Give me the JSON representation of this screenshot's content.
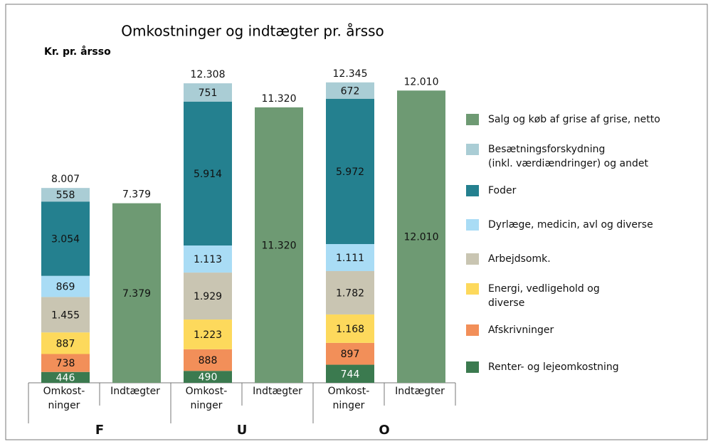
{
  "chart_data": {
    "type": "stacked_bar",
    "title": "Omkostninger og indtægter pr. årsso",
    "subtitle": "Kr. pr. årsso",
    "groups": [
      "F",
      "U",
      "O"
    ],
    "categories": [
      "Omkost-\nninger",
      "Indtægter",
      "Omkost-\nninger",
      "Indtægter",
      "Omkost-\nninger",
      "Indtægter"
    ],
    "series": [
      {
        "name": "Renter- og  lejeomkostning",
        "color": "#3b7a4f",
        "values": [
          446,
          null,
          490,
          null,
          744,
          null
        ],
        "value_labels": [
          "446",
          null,
          "490",
          null,
          "744",
          null
        ]
      },
      {
        "name": "Afskrivninger",
        "color": "#f28f59",
        "values": [
          738,
          null,
          888,
          null,
          897,
          null
        ],
        "value_labels": [
          "738",
          null,
          "888",
          null,
          "897",
          null
        ]
      },
      {
        "name": "Energi, vedligehold og\ndiverse",
        "color": "#fdd95c",
        "values": [
          887,
          null,
          1223,
          null,
          1168,
          null
        ],
        "value_labels": [
          "887",
          null,
          "1.223",
          null,
          "1.168",
          null
        ]
      },
      {
        "name": "Arbejdsomk.",
        "color": "#c9c5b2",
        "values": [
          1455,
          null,
          1929,
          null,
          1782,
          null
        ],
        "value_labels": [
          "1.455",
          null,
          "1.929",
          null,
          "1.782",
          null
        ]
      },
      {
        "name": "Dyrlæge, medicin, avl og diverse",
        "color": "#a9dcf5",
        "values": [
          869,
          null,
          1113,
          null,
          1111,
          null
        ],
        "value_labels": [
          "869",
          null,
          "1.113",
          null,
          "1.111",
          null
        ]
      },
      {
        "name": "Foder",
        "color": "#24808f",
        "values": [
          3054,
          null,
          5914,
          null,
          5972,
          null
        ],
        "value_labels": [
          "3.054",
          null,
          "5.914",
          null,
          "5.972",
          null
        ]
      },
      {
        "name": "Besætningsforskydning\n(inkl. værdiændringer) og andet",
        "color": "#aacdd5",
        "values": [
          558,
          null,
          751,
          null,
          672,
          null
        ],
        "value_labels": [
          "558",
          null,
          "751",
          null,
          "672",
          null
        ]
      },
      {
        "name": "Salg og køb af grise af grise, netto",
        "color": "#6e9a73",
        "values": [
          null,
          7379,
          null,
          11320,
          null,
          12010
        ],
        "value_labels": [
          null,
          "7.379",
          null,
          "11.320",
          null,
          "12.010"
        ]
      }
    ],
    "totals": {
      "values": [
        8007,
        7379,
        12308,
        11320,
        12345,
        12010
      ],
      "labels": [
        "8.007",
        "7.379",
        "12.308",
        "11.320",
        "12.345",
        "12.010"
      ]
    }
  }
}
